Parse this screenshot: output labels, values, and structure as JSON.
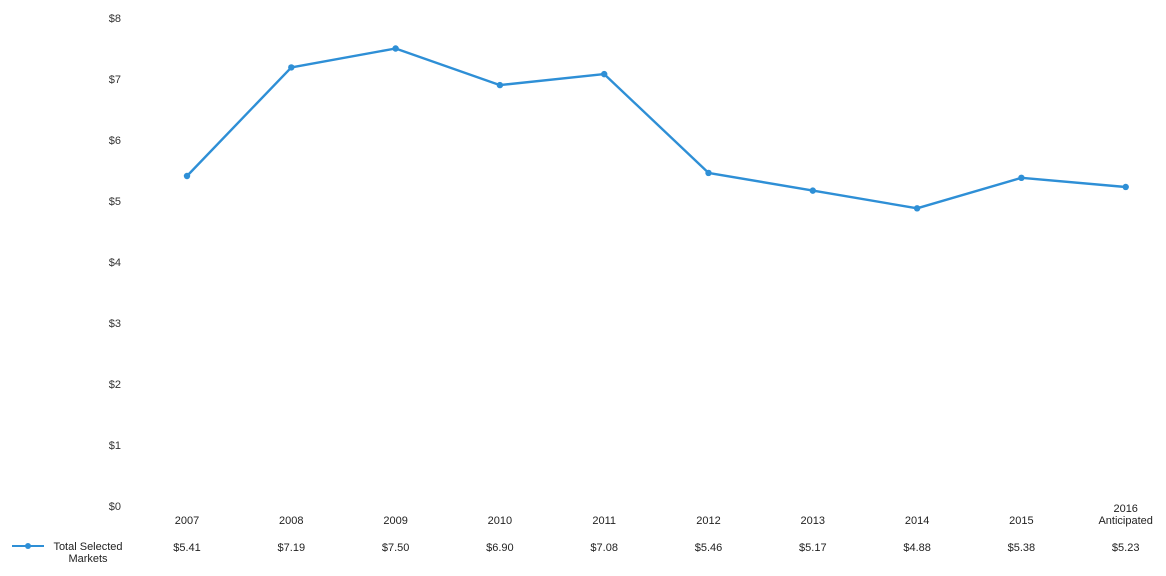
{
  "chart_data": {
    "type": "line",
    "title": "",
    "xlabel": "",
    "ylabel": "",
    "ylim": [
      0,
      8
    ],
    "y_ticks": [
      "$0",
      "$1",
      "$2",
      "$3",
      "$4",
      "$5",
      "$6",
      "$7",
      "$8"
    ],
    "categories": [
      [
        "2007"
      ],
      [
        "2008"
      ],
      [
        "2009"
      ],
      [
        "2010"
      ],
      [
        "2011"
      ],
      [
        "2012"
      ],
      [
        "2013"
      ],
      [
        "2014"
      ],
      [
        "2015"
      ],
      [
        "2016",
        "Anticipated"
      ]
    ],
    "grid": false,
    "legend_placement": "bottom-left, in data table",
    "series": [
      {
        "name": [
          "Total Selected",
          "Markets"
        ],
        "values": [
          5.41,
          7.19,
          7.5,
          6.9,
          7.08,
          5.46,
          5.17,
          4.88,
          5.38,
          5.23
        ],
        "value_labels": [
          "$5.41",
          "$7.19",
          "$7.50",
          "$6.90",
          "$7.08",
          "$5.46",
          "$5.17",
          "$4.88",
          "$5.38",
          "$5.23"
        ],
        "color": "#2e8fd6"
      }
    ]
  }
}
